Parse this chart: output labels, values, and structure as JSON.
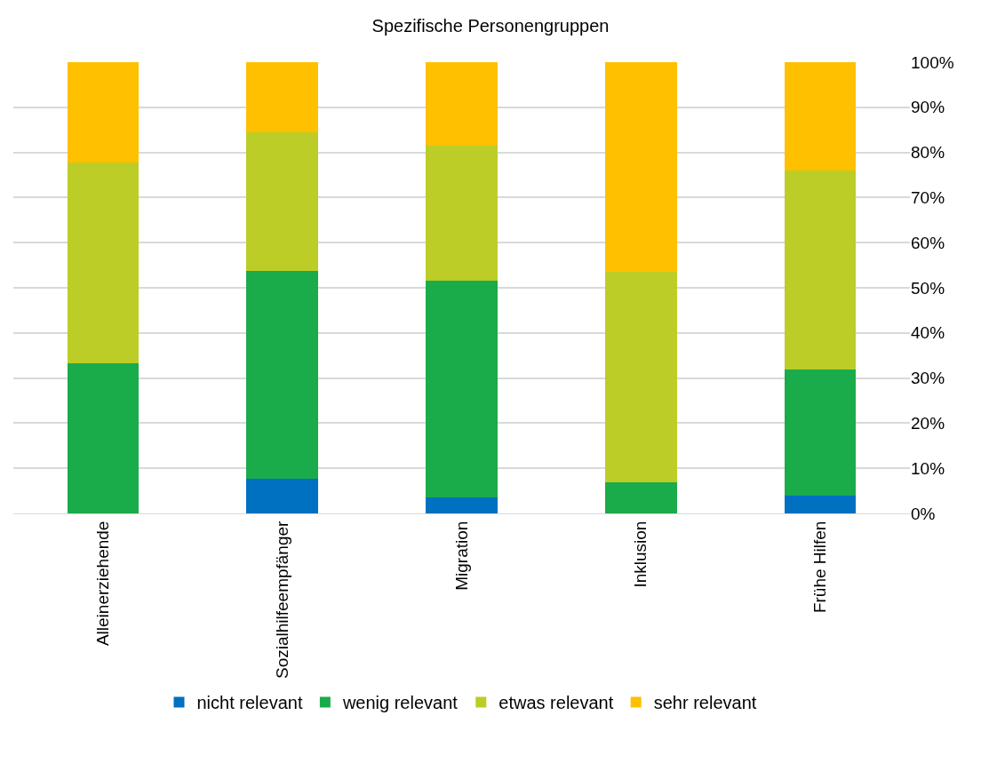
{
  "chart_data": {
    "type": "bar",
    "title": "Spezifische Personengruppen",
    "stacked": true,
    "categories": [
      "Alleinerziehende",
      "Sozialhilfeempfänger",
      "Migration",
      "Inklusion",
      "Frühe Hilfen"
    ],
    "series": [
      {
        "name": "nicht relevant",
        "color": "#0070c0",
        "values": [
          0,
          7.7,
          3.5,
          0,
          3.9
        ]
      },
      {
        "name": "wenig relevant",
        "color": "#1aab4b",
        "values": [
          33.3,
          46,
          48.1,
          6.9,
          28
        ]
      },
      {
        "name": "etwas relevant",
        "color": "#bccd27",
        "values": [
          44.5,
          30.7,
          29.9,
          46.6,
          44.1
        ]
      },
      {
        "name": "sehr relevant",
        "color": "#ffc000",
        "values": [
          22.2,
          15.6,
          18.5,
          46.5,
          24
        ]
      }
    ],
    "ylim": [
      0,
      100
    ],
    "yticks": [
      {
        "value": 0,
        "label": "0%"
      },
      {
        "value": 10,
        "label": "10%"
      },
      {
        "value": 20,
        "label": "20%"
      },
      {
        "value": 30,
        "label": "30%"
      },
      {
        "value": 40,
        "label": "40%"
      },
      {
        "value": 50,
        "label": "50%"
      },
      {
        "value": 60,
        "label": "60%"
      },
      {
        "value": 70,
        "label": "70%"
      },
      {
        "value": 80,
        "label": "80%"
      },
      {
        "value": 90,
        "label": "90%"
      },
      {
        "value": 100,
        "label": "100%"
      }
    ],
    "grid": "y",
    "legend": "bottom"
  }
}
